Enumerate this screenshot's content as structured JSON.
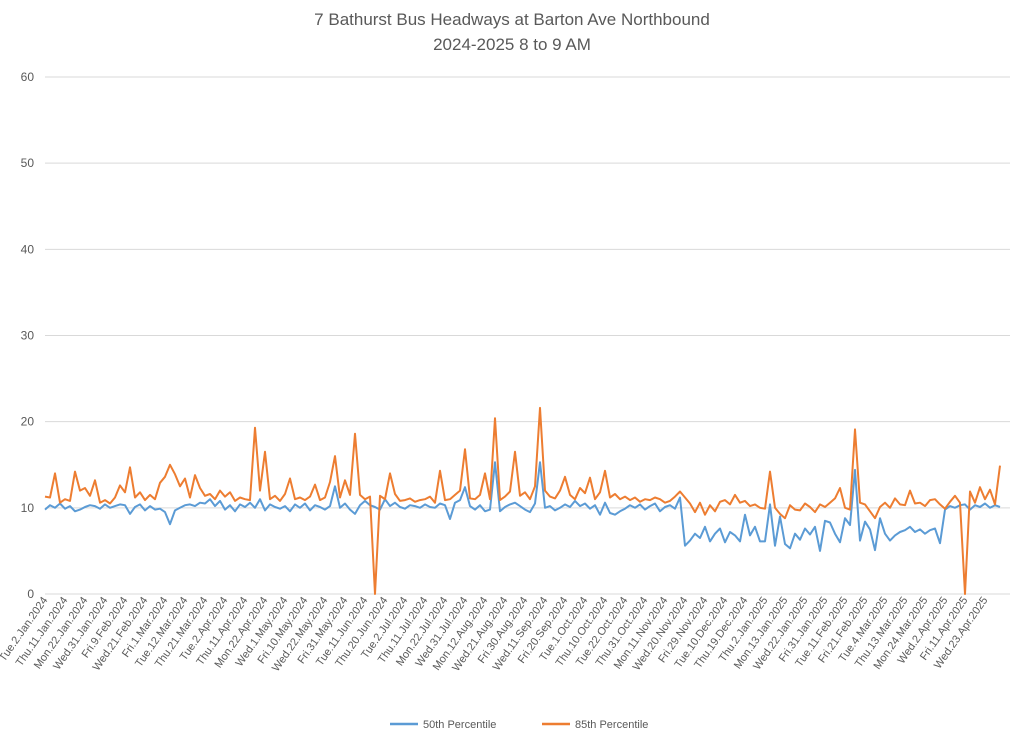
{
  "chart_data": {
    "type": "line",
    "title": [
      "7 Bathurst Bus Headways at Barton Ave Northbound",
      "2024-2025 8 to 9 AM"
    ],
    "xlabel": "",
    "ylabel": "",
    "ylim": [
      0,
      60
    ],
    "yticks": [
      0,
      10,
      20,
      30,
      40,
      50,
      60
    ],
    "grid": true,
    "legend_position": "bottom",
    "points_per_tick_label": 4,
    "x_tick_labels": [
      "Tue.2.Jan.2024",
      "Thu.11.Jan.2024",
      "Mon.22.Jan.2024",
      "Wed.31.Jan.2024",
      "Fri.9.Feb.2024",
      "Wed.21.Feb.2024",
      "Fri.1.Mar.2024",
      "Tue.12.Mar.2024",
      "Thu.21.Mar.2024",
      "Tue.2.Apr.2024",
      "Thu.11.Apr.2024",
      "Mon.22.Apr.2024",
      "Wed.1.May.2024",
      "Fri.10.May.2024",
      "Wed.22.May.2024",
      "Fri.31.May.2024",
      "Tue.11.Jun.2024",
      "Thu.20.Jun.2024",
      "Tue.2.Jul.2024",
      "Thu.11.Jul.2024",
      "Mon.22.Jul.2024",
      "Wed.31.Jul.2024",
      "Mon.12.Aug.2024",
      "Wed.21.Aug.2024",
      "Fri.30.Aug.2024",
      "Wed.11.Sep.2024",
      "Fri.20.Sep.2024",
      "Tue.1.Oct.2024",
      "Thu.10.Oct.2024",
      "Tue.22.Oct.2024",
      "Thu.31.Oct.2024",
      "Mon.11.Nov.2024",
      "Wed.20.Nov.2024",
      "Fri.29.Nov.2024",
      "Tue.10.Dec.2024",
      "Thu.19.Dec.2024",
      "Thu.2.Jan.2025",
      "Mon.13.Jan.2025",
      "Wed.22.Jan.2025",
      "Fri.31.Jan.2025",
      "Tue.11.Feb.2025",
      "Fri.21.Feb.2025",
      "Tue.4.Mar.2025",
      "Thu.13.Mar.2025",
      "Mon.24.Mar.2025",
      "Wed.2.Apr.2025",
      "Fri.11.Apr.2025",
      "Wed.23.Apr.2025"
    ],
    "series": [
      {
        "name": "50th Percentile",
        "color": "#5B9BD5",
        "values": [
          9.8,
          10.3,
          10.0,
          10.5,
          9.9,
          10.2,
          9.6,
          9.8,
          10.1,
          10.3,
          10.2,
          9.9,
          10.4,
          10.0,
          10.2,
          10.4,
          10.3,
          9.3,
          10.1,
          10.4,
          9.7,
          10.2,
          9.8,
          9.9,
          9.5,
          8.1,
          9.7,
          10.0,
          10.3,
          10.4,
          10.2,
          10.6,
          10.5,
          11.0,
          10.2,
          10.8,
          9.8,
          10.3,
          9.6,
          10.4,
          10.1,
          10.6,
          10.0,
          11.0,
          9.7,
          10.4,
          10.1,
          9.9,
          10.2,
          9.6,
          10.4,
          10.0,
          10.5,
          9.7,
          10.3,
          10.1,
          9.8,
          10.2,
          12.5,
          10.0,
          10.5,
          9.8,
          9.3,
          10.3,
          10.8,
          10.3,
          10.1,
          9.8,
          11.0,
          10.2,
          10.6,
          10.1,
          9.9,
          10.3,
          10.2,
          10.0,
          10.4,
          10.1,
          10.0,
          10.5,
          10.3,
          8.7,
          10.6,
          10.9,
          12.4,
          10.2,
          9.8,
          10.3,
          9.6,
          9.8,
          15.3,
          9.6,
          10.1,
          10.4,
          10.6,
          10.2,
          9.8,
          9.5,
          10.5,
          15.3,
          10.0,
          10.2,
          9.7,
          10.0,
          10.4,
          10.1,
          10.8,
          10.2,
          10.5,
          9.9,
          10.3,
          9.2,
          10.6,
          9.4,
          9.2,
          9.6,
          9.9,
          10.3,
          10.0,
          10.4,
          9.8,
          10.2,
          10.5,
          9.6,
          10.1,
          10.3,
          9.9,
          11.2,
          5.6,
          6.2,
          7.0,
          6.5,
          7.8,
          6.1,
          7.0,
          7.6,
          6.0,
          7.2,
          6.8,
          6.1,
          9.2,
          6.8,
          7.8,
          6.1,
          6.1,
          10.4,
          5.6,
          9.0,
          5.8,
          5.3,
          7.0,
          6.3,
          7.6,
          6.9,
          7.8,
          5.0,
          8.5,
          8.3,
          7.0,
          6.0,
          8.8,
          8.0,
          14.4,
          6.2,
          8.4,
          7.5,
          5.1,
          8.8,
          7.0,
          6.2,
          6.8,
          7.2,
          7.4,
          7.8,
          7.2,
          7.5,
          7.0,
          7.4,
          7.6,
          5.9,
          9.8,
          10.2,
          10.0,
          10.3,
          10.4,
          9.8,
          10.3,
          10.1,
          10.5,
          10.0,
          10.3,
          10.1
        ]
      },
      {
        "name": "85th Percentile",
        "color": "#ED7D31",
        "values": [
          11.3,
          11.2,
          14.0,
          10.6,
          11.0,
          10.8,
          14.2,
          12.0,
          12.3,
          11.4,
          13.2,
          10.6,
          10.9,
          10.5,
          11.2,
          12.6,
          11.8,
          14.7,
          11.2,
          11.8,
          10.9,
          11.5,
          11.0,
          12.9,
          13.6,
          15.0,
          13.9,
          12.5,
          13.4,
          11.2,
          13.8,
          12.3,
          11.4,
          11.6,
          11.0,
          12.0,
          11.3,
          11.8,
          10.8,
          11.2,
          11.0,
          10.9,
          19.3,
          12.0,
          16.5,
          11.0,
          11.4,
          10.8,
          11.6,
          13.4,
          11.0,
          11.2,
          10.9,
          11.3,
          12.7,
          10.9,
          11.2,
          13.0,
          16.0,
          11.2,
          13.2,
          11.5,
          18.6,
          11.5,
          11.0,
          11.3,
          0,
          11.4,
          11.0,
          14.0,
          11.6,
          10.8,
          10.9,
          11.1,
          10.7,
          10.9,
          11.0,
          11.3,
          10.6,
          14.3,
          10.9,
          11.0,
          11.5,
          12.0,
          16.8,
          11.1,
          11.0,
          11.5,
          14.0,
          11.0,
          20.4,
          10.9,
          11.3,
          11.9,
          16.5,
          11.4,
          11.8,
          11.0,
          12.5,
          21.6,
          12.0,
          11.3,
          11.1,
          12.0,
          13.6,
          11.5,
          11.0,
          12.3,
          11.7,
          13.5,
          11.0,
          11.8,
          14.3,
          11.2,
          11.6,
          11.0,
          11.3,
          10.9,
          11.2,
          10.7,
          11.0,
          10.9,
          11.2,
          11.0,
          10.6,
          10.8,
          11.3,
          11.9,
          11.2,
          10.5,
          9.5,
          10.6,
          9.2,
          10.3,
          9.6,
          10.7,
          10.9,
          10.4,
          11.5,
          10.6,
          10.8,
          10.2,
          10.4,
          10.0,
          9.9,
          14.2,
          10.0,
          9.3,
          8.8,
          10.3,
          9.8,
          9.7,
          10.5,
          10.1,
          9.5,
          10.4,
          10.1,
          10.6,
          11.1,
          12.3,
          10.0,
          9.8,
          19.1,
          10.6,
          10.4,
          9.6,
          8.8,
          10.1,
          10.6,
          10.0,
          11.1,
          10.4,
          10.3,
          12.0,
          10.5,
          10.6,
          10.2,
          10.9,
          11.0,
          10.4,
          9.9,
          10.7,
          11.4,
          10.6,
          0,
          11.9,
          10.6,
          12.4,
          11.0,
          12.1,
          10.4,
          14.9
        ]
      }
    ]
  }
}
